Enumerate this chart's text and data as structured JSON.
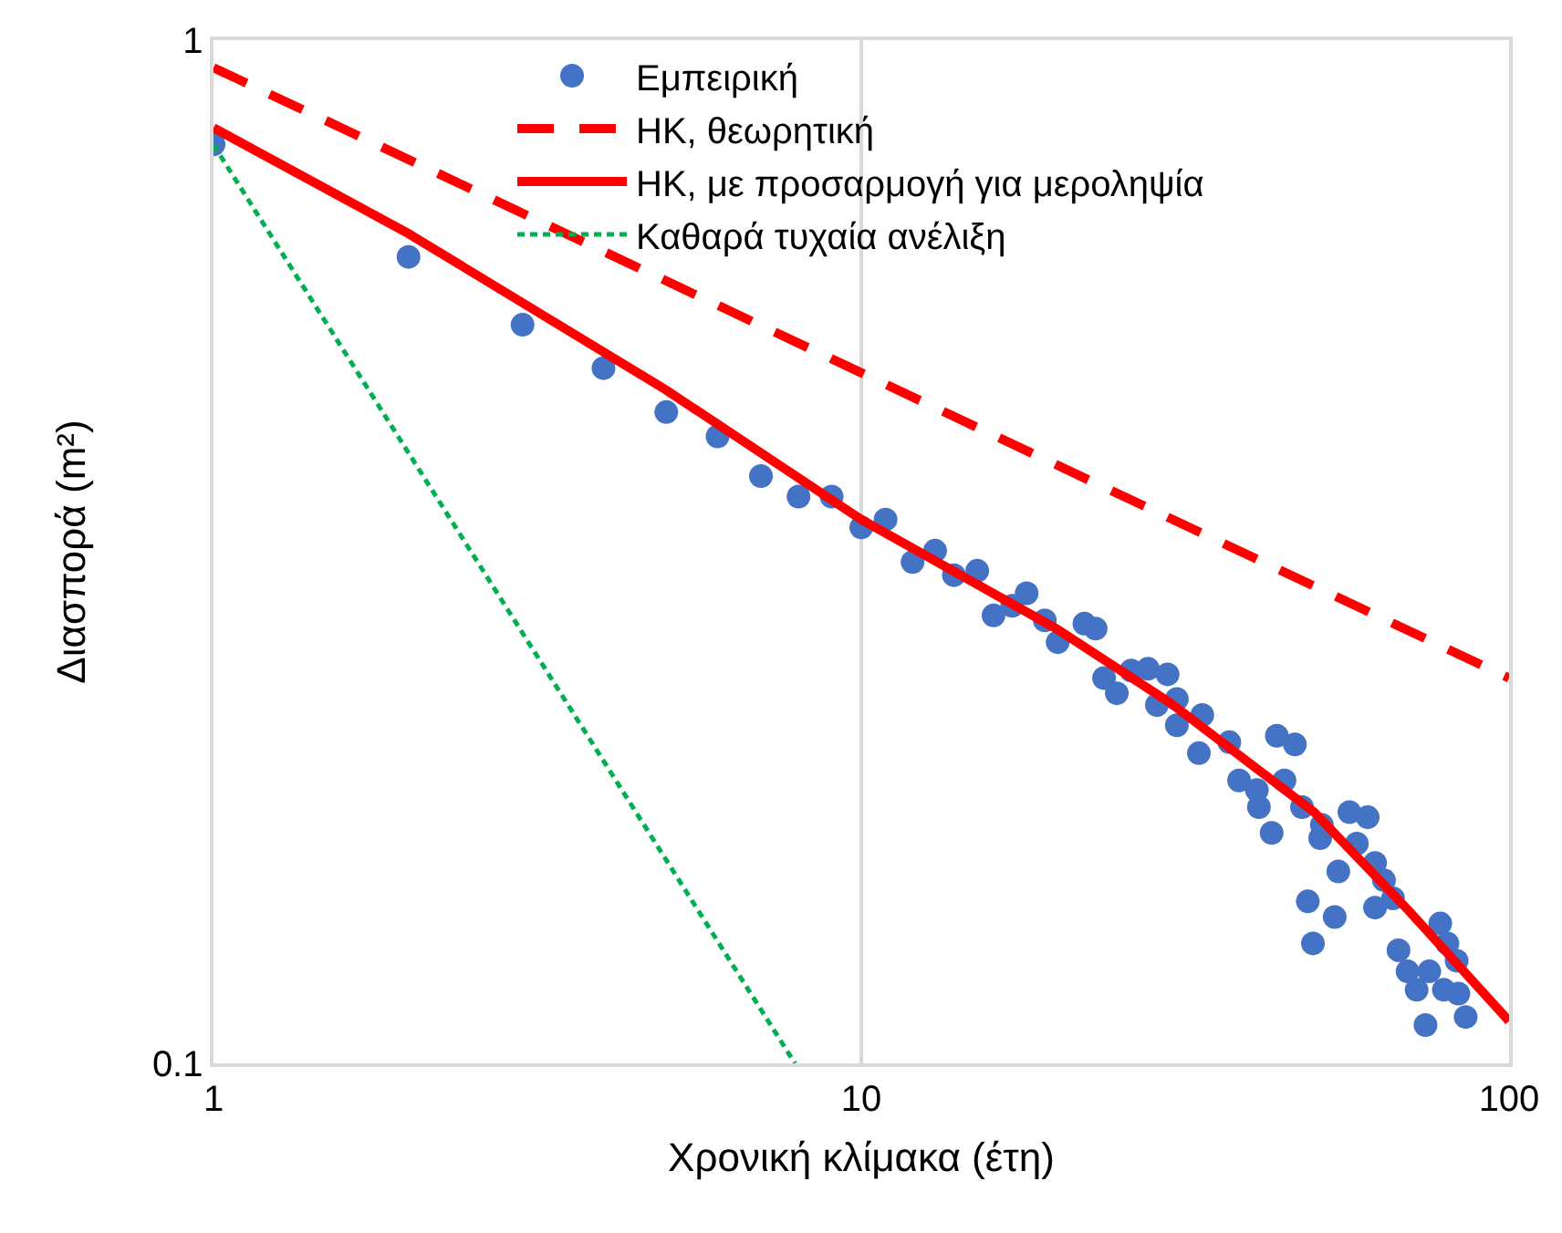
{
  "chart_data": {
    "type": "scatter",
    "xlabel": "Χρονική κλίμακα (έτη)",
    "ylabel": "Διασπορά (m²)",
    "log": "xy",
    "grid": "x",
    "legend": "top",
    "marker": "circle",
    "xlim": [
      1,
      100
    ],
    "xticks": [
      1,
      10,
      100
    ],
    "ylim": [
      0.1,
      1
    ],
    "yticks": [
      0.1,
      1
    ],
    "series": [
      {
        "name": "Εμπειρική",
        "color": "#4472c4",
        "x": [
          1,
          2,
          3,
          4,
          5,
          6,
          7,
          8,
          9,
          10,
          10.9,
          12,
          13,
          13.9,
          15.1,
          16,
          17.1,
          18,
          19.2,
          20.1,
          22.1,
          23,
          23.7,
          24.8,
          26.1,
          27.7,
          29.7,
          28.6,
          30.7,
          30.7,
          33.6,
          33.2,
          37,
          43.8,
          46.7,
          38.3,
          40.8,
          41.1,
          43,
          45,
          47.9,
          51.1,
          51.4,
          54.5,
          56.7,
          60.5,
          58.2,
          62.1,
          64.1,
          62.1,
          66.2,
          48.9,
          53.8,
          49.8,
          67.5,
          69.7,
          78.3,
          80.3,
          83,
          72,
          75.3,
          79.3,
          83.5,
          85.7,
          74.3
        ],
        "values": [
          0.791,
          0.614,
          0.527,
          0.478,
          0.433,
          0.41,
          0.375,
          0.358,
          0.358,
          0.334,
          0.34,
          0.309,
          0.317,
          0.3,
          0.303,
          0.274,
          0.28,
          0.288,
          0.271,
          0.258,
          0.269,
          0.266,
          0.238,
          0.23,
          0.242,
          0.243,
          0.24,
          0.224,
          0.227,
          0.214,
          0.219,
          0.201,
          0.206,
          0.209,
          0.205,
          0.189,
          0.185,
          0.178,
          0.168,
          0.189,
          0.178,
          0.166,
          0.171,
          0.154,
          0.176,
          0.174,
          0.164,
          0.157,
          0.151,
          0.142,
          0.145,
          0.144,
          0.139,
          0.131,
          0.129,
          0.123,
          0.137,
          0.131,
          0.126,
          0.118,
          0.123,
          0.118,
          0.117,
          0.111,
          0.109
        ]
      },
      {
        "name": "ΗΚ, θεωρητική",
        "type": "line",
        "line_style": "dashed",
        "marker": "none",
        "color": "#ff0000",
        "x": [
          1,
          100
        ],
        "values": [
          0.94,
          0.238
        ]
      },
      {
        "name": "ΗΚ, με προσαρμογή για μεροληψία",
        "type": "line",
        "line_style": "solid",
        "marker": "none",
        "color": "#ff0000",
        "x": [
          1,
          2,
          5,
          10,
          20,
          30,
          50,
          70,
          100
        ],
        "values": [
          0.821,
          0.647,
          0.455,
          0.34,
          0.266,
          0.225,
          0.176,
          0.141,
          0.11
        ]
      },
      {
        "name": "Καθαρά τυχαία ανέλιξη",
        "type": "line",
        "line_style": "dotted",
        "marker": "none",
        "color": "#00b050",
        "x": [
          1,
          7.9
        ],
        "values": [
          0.79,
          0.1
        ]
      }
    ]
  }
}
